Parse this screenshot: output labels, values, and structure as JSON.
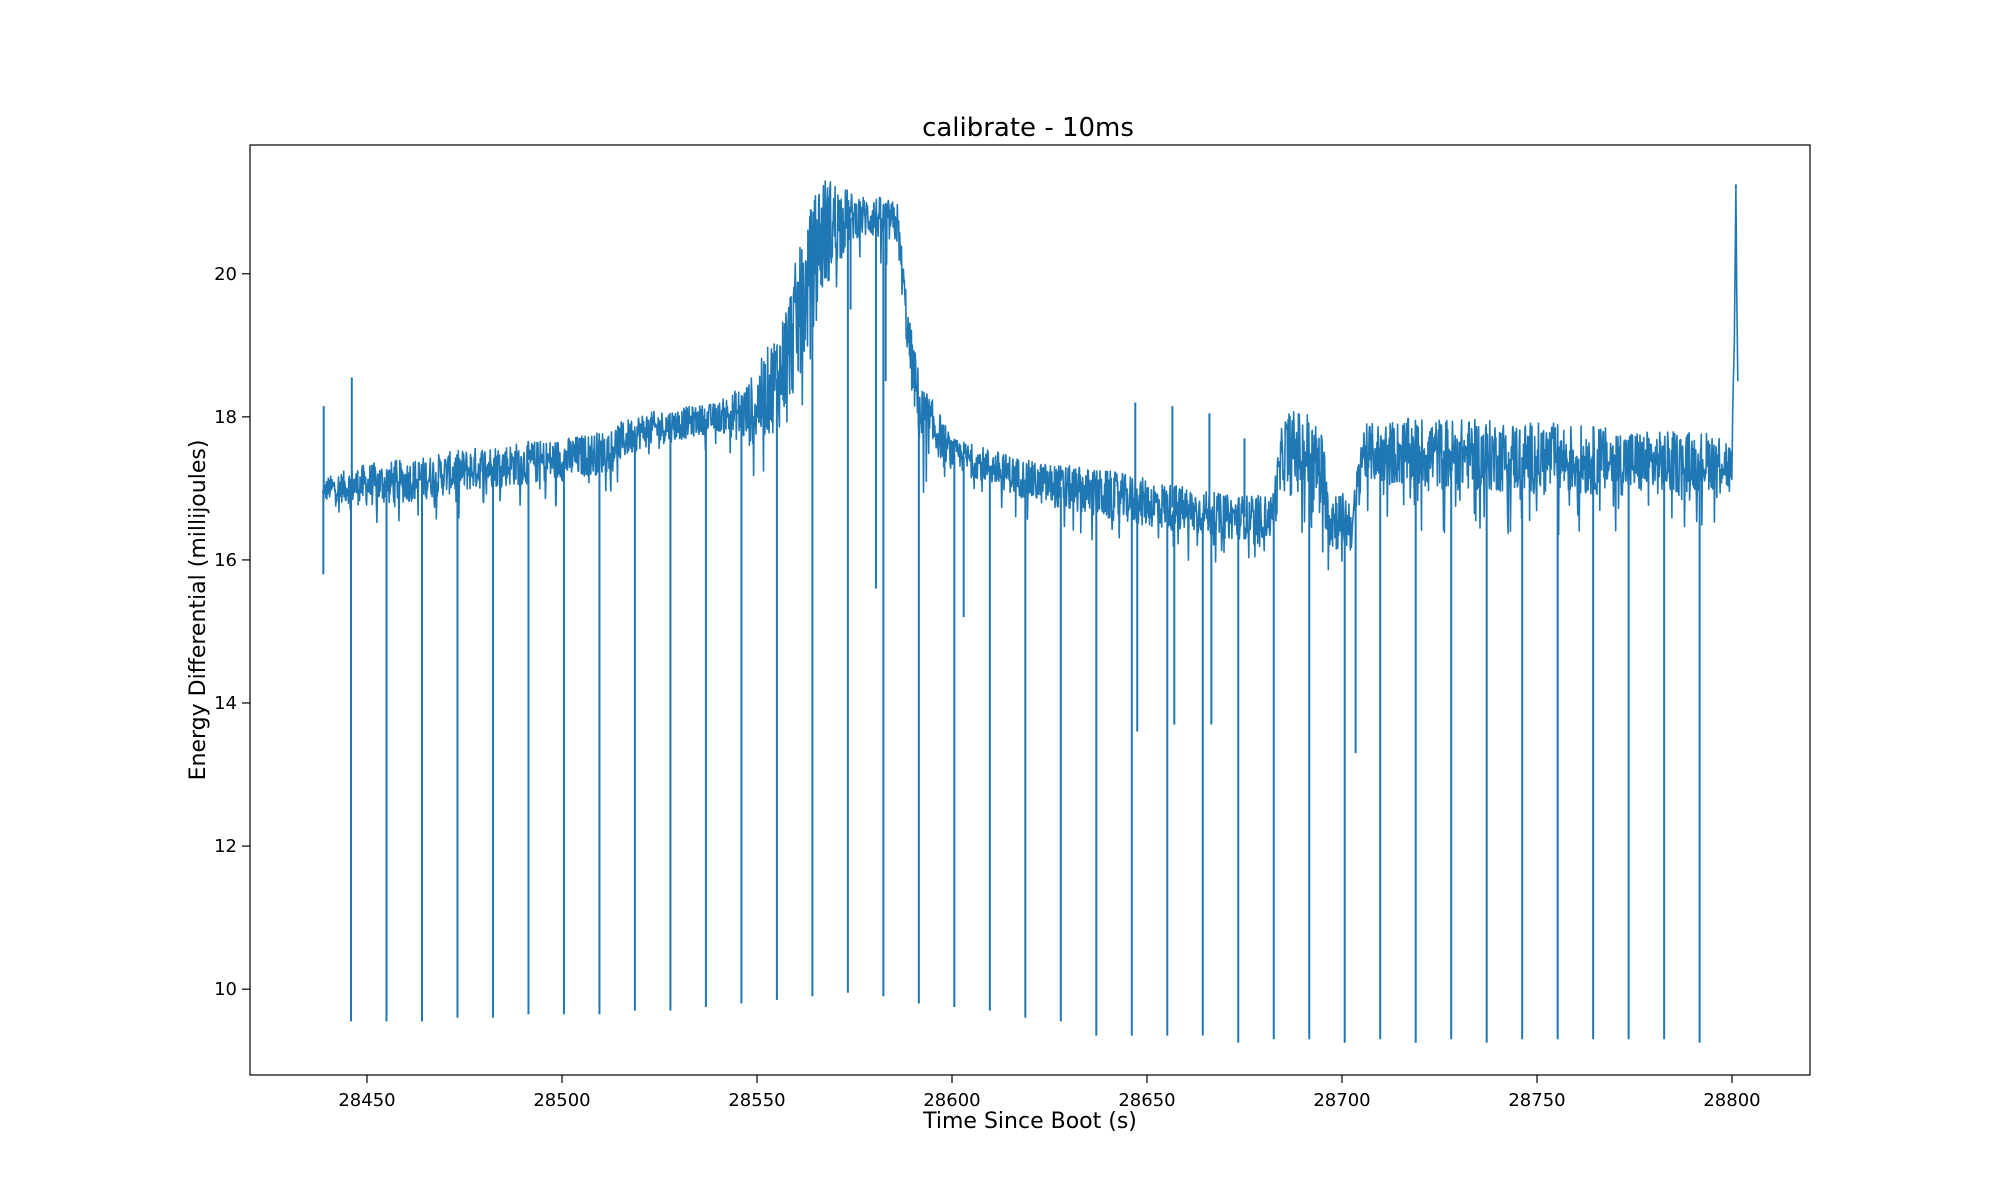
{
  "chart_data": {
    "type": "line",
    "title": "calibrate - 10ms",
    "xlabel": "Time Since Boot (s)",
    "ylabel": "Energy Differential (millijoules)",
    "xlim": [
      28420,
      28820
    ],
    "ylim": [
      8.8,
      21.8
    ],
    "x_ticks": [
      28450,
      28500,
      28550,
      28600,
      28650,
      28700,
      28750,
      28800
    ],
    "y_ticks": [
      10,
      12,
      14,
      16,
      18,
      20
    ],
    "grid": false,
    "legend": "none",
    "series": [
      {
        "color": "#1f77b4",
        "baseline": [
          [
            28438.5,
            16.9
          ],
          [
            28440,
            17.0
          ],
          [
            28450,
            17.05
          ],
          [
            28460,
            17.1
          ],
          [
            28470,
            17.2
          ],
          [
            28480,
            17.3
          ],
          [
            28490,
            17.35
          ],
          [
            28500,
            17.4
          ],
          [
            28510,
            17.5
          ],
          [
            28520,
            17.8
          ],
          [
            28530,
            17.9
          ],
          [
            28540,
            18.0
          ],
          [
            28548,
            18.05
          ],
          [
            28552,
            18.3
          ],
          [
            28556,
            18.6
          ],
          [
            28560,
            19.3
          ],
          [
            28563,
            19.8
          ],
          [
            28566,
            20.5
          ],
          [
            28570,
            20.7
          ],
          [
            28575,
            20.8
          ],
          [
            28580,
            20.8
          ],
          [
            28586,
            20.7
          ],
          [
            28589,
            19.0
          ],
          [
            28592,
            18.0
          ],
          [
            28596,
            17.8
          ],
          [
            28600,
            17.5
          ],
          [
            28610,
            17.3
          ],
          [
            28620,
            17.1
          ],
          [
            28630,
            17.0
          ],
          [
            28640,
            16.9
          ],
          [
            28650,
            16.8
          ],
          [
            28660,
            16.7
          ],
          [
            28670,
            16.6
          ],
          [
            28682,
            16.6
          ],
          [
            28685,
            17.5
          ],
          [
            28691,
            17.5
          ],
          [
            28695,
            17.2
          ],
          [
            28697,
            16.6
          ],
          [
            28703,
            16.5
          ],
          [
            28705,
            17.5
          ],
          [
            28720,
            17.5
          ],
          [
            28740,
            17.45
          ],
          [
            28760,
            17.4
          ],
          [
            28780,
            17.35
          ],
          [
            28798,
            17.4
          ],
          [
            28800,
            17.2
          ],
          [
            28800.6,
            19.0
          ],
          [
            28801,
            21.2
          ],
          [
            28801.2,
            19.8
          ],
          [
            28801.5,
            18.5
          ]
        ],
        "band": [
          [
            28438.5,
            0.15
          ],
          [
            28450,
            0.3
          ],
          [
            28480,
            0.3
          ],
          [
            28510,
            0.3
          ],
          [
            28520,
            0.25
          ],
          [
            28540,
            0.2
          ],
          [
            28552,
            0.6
          ],
          [
            28560,
            0.9
          ],
          [
            28566,
            0.9
          ],
          [
            28575,
            0.3
          ],
          [
            28586,
            0.3
          ],
          [
            28592,
            0.5
          ],
          [
            28600,
            0.2
          ],
          [
            28610,
            0.25
          ],
          [
            28640,
            0.35
          ],
          [
            28682,
            0.3
          ],
          [
            28686,
            0.6
          ],
          [
            28694,
            0.6
          ],
          [
            28700,
            0.4
          ],
          [
            28706,
            0.4
          ],
          [
            28720,
            0.5
          ],
          [
            28760,
            0.5
          ],
          [
            28798,
            0.4
          ]
        ],
        "drops": [
          [
            28445.9,
            9.55
          ],
          [
            28455,
            9.55
          ],
          [
            28464.1,
            9.55
          ],
          [
            28473.2,
            9.6
          ],
          [
            28482.3,
            9.6
          ],
          [
            28491.4,
            9.65
          ],
          [
            28500.5,
            9.65
          ],
          [
            28509.6,
            9.65
          ],
          [
            28518.7,
            9.7
          ],
          [
            28527.8,
            9.7
          ],
          [
            28536.9,
            9.75
          ],
          [
            28546,
            9.8
          ],
          [
            28555.1,
            9.85
          ],
          [
            28564.2,
            9.9
          ],
          [
            28573.3,
            9.95
          ],
          [
            28582.4,
            9.9
          ],
          [
            28591.5,
            9.8
          ],
          [
            28600.6,
            9.75
          ],
          [
            28609.7,
            9.7
          ],
          [
            28618.8,
            9.6
          ],
          [
            28627.9,
            9.55
          ],
          [
            28637,
            9.35
          ],
          [
            28646.1,
            9.35
          ],
          [
            28655.2,
            9.35
          ],
          [
            28664.3,
            9.35
          ],
          [
            28673.4,
            9.25
          ],
          [
            28682.5,
            9.3
          ],
          [
            28691.6,
            9.3
          ],
          [
            28700.7,
            9.25
          ],
          [
            28709.8,
            9.3
          ],
          [
            28718.9,
            9.25
          ],
          [
            28728,
            9.3
          ],
          [
            28737.1,
            9.25
          ],
          [
            28746.2,
            9.3
          ],
          [
            28755.3,
            9.3
          ],
          [
            28764.4,
            9.3
          ],
          [
            28773.5,
            9.3
          ],
          [
            28782.6,
            9.3
          ],
          [
            28791.7,
            9.25
          ]
        ],
        "spikes": [
          [
            28438.8,
            15.8
          ],
          [
            28438.9,
            18.15
          ],
          [
            28446.1,
            18.55
          ],
          [
            28457.5,
            17.4
          ],
          [
            28563.8,
            20.9
          ],
          [
            28567,
            20.6
          ],
          [
            28574,
            19.5
          ],
          [
            28580.5,
            15.6
          ],
          [
            28583,
            18.5
          ],
          [
            28603,
            15.2
          ],
          [
            28647,
            18.2
          ],
          [
            28647.5,
            13.6
          ],
          [
            28656.5,
            18.15
          ],
          [
            28657,
            13.7
          ],
          [
            28666,
            18.05
          ],
          [
            28666.5,
            13.7
          ],
          [
            28675,
            17.7
          ],
          [
            28703.5,
            13.3
          ],
          [
            28801,
            21.25
          ]
        ]
      }
    ]
  }
}
